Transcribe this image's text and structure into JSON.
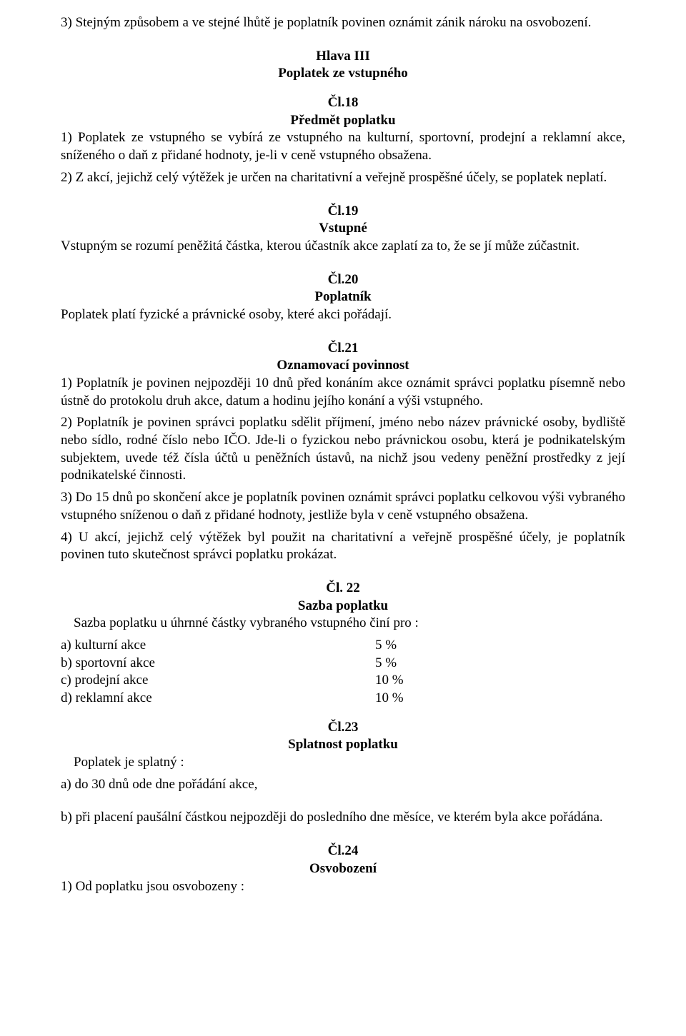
{
  "top": {
    "p3": "3) Stejným způsobem a ve stejné lhůtě je poplatník povinen oznámit zánik nároku na osvobození."
  },
  "hlava3": {
    "title1": "Hlava III",
    "title2": "Poplatek ze vstupného"
  },
  "cl18": {
    "num": "Čl.18",
    "title": "Předmět poplatku",
    "p1": "1) Poplatek ze vstupného se vybírá ze vstupného na kulturní, sportovní, prodejní a reklamní akce, sníženého o daň z přidané hodnoty, je-li v ceně vstupného obsažena.",
    "p2": "2) Z akcí, jejichž celý výtěžek je určen na charitativní a veřejně prospěšné účely, se poplatek neplatí."
  },
  "cl19": {
    "num": "Čl.19",
    "title": "Vstupné",
    "p": "Vstupným se rozumí peněžitá částka, kterou účastník akce zaplatí za to, že se jí může zúčastnit."
  },
  "cl20": {
    "num": "Čl.20",
    "title": "Poplatník",
    "p": "Poplatek platí fyzické a právnické osoby, které akci pořádají."
  },
  "cl21": {
    "num": "Čl.21",
    "title": "Oznamovací povinnost",
    "p1": "1) Poplatník je povinen nejpozději 10 dnů před konáním akce oznámit správci poplatku písemně nebo ústně do protokolu druh akce, datum a hodinu jejího konání a výši vstupného.",
    "p2": "2) Poplatník je povinen správci poplatku sdělit příjmení, jméno nebo název právnické osoby, bydliště nebo sídlo, rodné číslo nebo IČO. Jde-li o fyzickou nebo právnickou osobu, která je podnikatelským subjektem, uvede též čísla účtů u peněžních ústavů, na nichž jsou vedeny peněžní prostředky z její podnikatelské činnosti.",
    "p3": "3) Do 15 dnů po skončení akce je poplatník povinen oznámit správci poplatku celkovou výši vybraného vstupného sníženou o daň z přidané hodnoty, jestliže byla v ceně vstupného obsažena.",
    "p4": "4) U akcí, jejichž celý výtěžek byl použit na charitativní a veřejně prospěšné účely, je poplatník povinen tuto skutečnost správci poplatku prokázat."
  },
  "cl22": {
    "num": "Čl. 22",
    "title": "Sazba poplatku",
    "intro": "Sazba poplatku u úhrnné částky vybraného vstupného činí pro :",
    "rows": [
      {
        "label": "a) kulturní akce",
        "value": "5 %"
      },
      {
        "label": "b) sportovní akce",
        "value": "5 %"
      },
      {
        "label": "c) prodejní akce",
        "value": "10 %"
      },
      {
        "label": "d) reklamní akce",
        "value": "10 %"
      }
    ]
  },
  "cl23": {
    "num": "Čl.23",
    "title": "Splatnost poplatku",
    "intro": "Poplatek je splatný :",
    "a": "a) do 30 dnů ode dne pořádání akce,",
    "b": "b) při placení paušální částkou nejpozději do posledního dne měsíce, ve kterém byla akce pořádána."
  },
  "cl24": {
    "num": "Čl.24",
    "title": "Osvobození",
    "p1": "1) Od poplatku jsou osvobozeny :"
  }
}
